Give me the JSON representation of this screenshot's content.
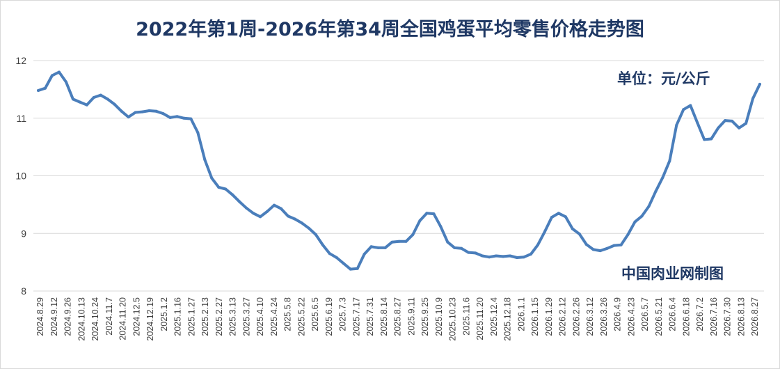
{
  "chart_data": {
    "type": "line",
    "title": "2022年第1周-2026年第34周全国鸡蛋平均零售价格走势图",
    "unit_label": "单位：元/公斤",
    "source_label": "中国肉业网制图",
    "ylim": [
      8,
      12
    ],
    "yticks": [
      "8",
      "9",
      "10",
      "11",
      "12"
    ],
    "grid": true,
    "legend": "none",
    "line_color": "#4a7ebb",
    "text_color": "#1f3864",
    "x_tick_labels": [
      "2024.8.29",
      "2024.9.12",
      "2024.9.26",
      "2024.10.13",
      "2024.10.24",
      "2024.11.7",
      "2024.11.20",
      "2024.12.5",
      "2024.12.19",
      "2025.1.2",
      "2025.1.16",
      "2025.1.27",
      "2025.2.13",
      "2025.2.27",
      "2025.3.13",
      "2025.3.27",
      "2025.4.10",
      "2025.4.24",
      "2025.5.8",
      "2025.5.22",
      "2025.6.5",
      "2025.6.19",
      "2025.7.3",
      "2025.7.17",
      "2025.7.31",
      "2025.8.14",
      "2025.8.27",
      "2025.9.11",
      "2025.9.25",
      "2025.10.9",
      "2025.10.23",
      "2025.11.6",
      "2025.11.20",
      "2025.12.4",
      "2025.12.18",
      "2026.1.1",
      "2026.1.15",
      "2026.1.29",
      "2026.2.12",
      "2026.2.26",
      "2026.3.12",
      "2026.3.26",
      "2026.4.9",
      "2026.4.23",
      "2026.5.7",
      "2026.5.21",
      "2026.6.4",
      "2026.6.18",
      "2026.7.2",
      "2026.7.16",
      "2026.7.30",
      "2026.8.13",
      "2026.8.27"
    ],
    "values": [
      11.48,
      11.52,
      11.74,
      11.8,
      11.63,
      11.33,
      11.28,
      11.23,
      11.36,
      11.4,
      11.33,
      11.24,
      11.12,
      11.02,
      11.1,
      11.11,
      11.13,
      11.12,
      11.08,
      11.01,
      11.03,
      11.0,
      10.99,
      10.75,
      10.28,
      9.96,
      9.8,
      9.77,
      9.67,
      9.55,
      9.44,
      9.35,
      9.29,
      9.38,
      9.49,
      9.43,
      9.3,
      9.25,
      9.18,
      9.09,
      8.98,
      8.8,
      8.65,
      8.58,
      8.48,
      8.38,
      8.39,
      8.64,
      8.77,
      8.75,
      8.75,
      8.85,
      8.86,
      8.86,
      8.98,
      9.22,
      9.35,
      9.34,
      9.12,
      8.85,
      8.75,
      8.74,
      8.67,
      8.66,
      8.61,
      8.59,
      8.61,
      8.6,
      8.61,
      8.58,
      8.59,
      8.64,
      8.8,
      9.03,
      9.28,
      9.35,
      9.29,
      9.08,
      8.99,
      8.81,
      8.72,
      8.7,
      8.74,
      8.79,
      8.8,
      8.98,
      9.2,
      9.3,
      9.47,
      9.73,
      9.97,
      10.26,
      10.88,
      11.15,
      11.22,
      10.92,
      10.63,
      10.64,
      10.83,
      10.96,
      10.95,
      10.83,
      10.91,
      11.34,
      11.59
    ]
  }
}
